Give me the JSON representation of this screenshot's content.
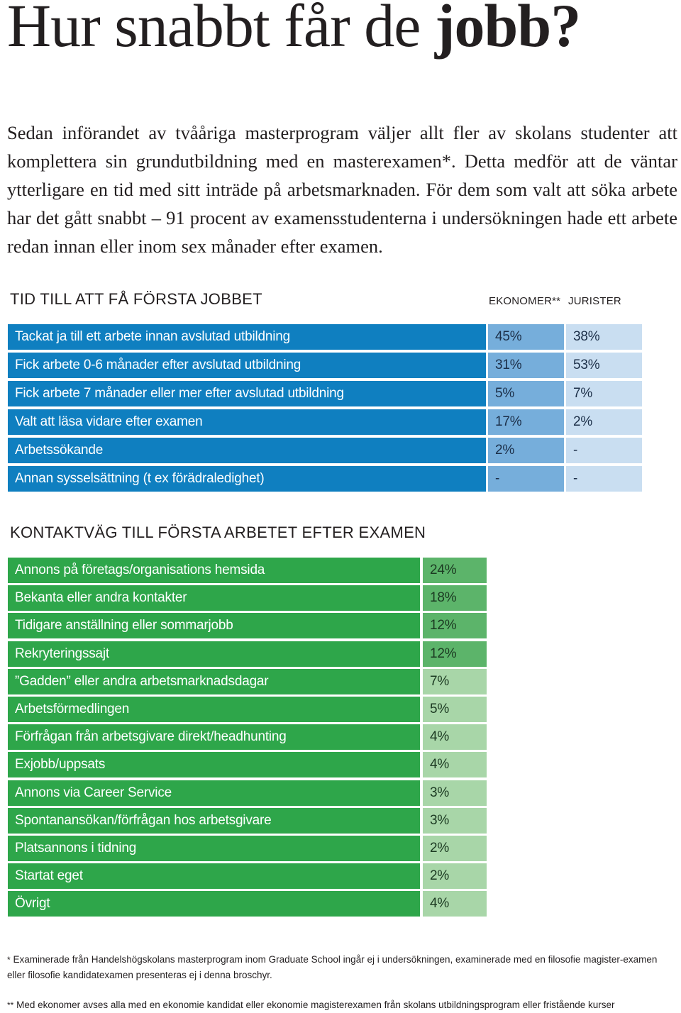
{
  "title": {
    "regular": "Hur snabbt får de ",
    "bold": "jobb?"
  },
  "intro": "Sedan införandet av tvååriga masterprogram väljer allt fler av skolans studenter att komplettera sin grundutbildning med en masterexamen*. Detta medför att de väntar ytterligare en tid med sitt inträde på arbetsmarknaden. För dem som valt att söka arbete har det gått snabbt – 91 procent av examensstudenterna i undersökningen hade ett arbete redan innan eller inom sex månader efter examen.",
  "table1": {
    "heading": "TID TILL ATT FÅ FÖRSTA JOBBET",
    "col1": "EKONOMER**",
    "col2": "JURISTER",
    "colors": {
      "label": "#0f7fc0",
      "ekonomer": "#76aedb",
      "jurister": "#c9def1"
    },
    "rows": [
      {
        "label": "Tackat ja till ett arbete innan avslutad utbildning",
        "ekonomer": "45%",
        "jurister": "38%"
      },
      {
        "label": "Fick arbete 0-6 månader efter avslutad utbildning",
        "ekonomer": "31%",
        "jurister": "53%"
      },
      {
        "label": "Fick arbete 7 månader eller mer efter avslutad utbildning",
        "ekonomer": "5%",
        "jurister": "7%"
      },
      {
        "label": "Valt att läsa vidare efter examen",
        "ekonomer": "17%",
        "jurister": "2%"
      },
      {
        "label": "Arbetssökande",
        "ekonomer": "2%",
        "jurister": "-"
      },
      {
        "label": "Annan sysselsättning (t ex förädraledighet)",
        "ekonomer": "-",
        "jurister": "-"
      }
    ]
  },
  "table2": {
    "heading": "KONTAKTVÄG TILL FÖRSTA ARBETET EFTER EXAMEN",
    "colors": {
      "label": "#2ea64a",
      "value_dark": "#5cb46a",
      "value_light": "#a8d6a8"
    },
    "rows": [
      {
        "label": "Annons på företags/organisations hemsida",
        "value": "24%"
      },
      {
        "label": "Bekanta eller andra kontakter",
        "value": "18%"
      },
      {
        "label": "Tidigare anställning eller sommarjobb",
        "value": "12%"
      },
      {
        "label": "Rekryteringssajt",
        "value": "12%"
      },
      {
        "label": "”Gadden” eller andra arbetsmarknadsdagar",
        "value": "7%"
      },
      {
        "label": "Arbetsförmedlingen",
        "value": "5%"
      },
      {
        "label": "Förfrågan från arbetsgivare direkt/headhunting",
        "value": "4%"
      },
      {
        "label": "Exjobb/uppsats",
        "value": "4%"
      },
      {
        "label": "Annons via Career Service",
        "value": "3%"
      },
      {
        "label": "Spontanansökan/förfrågan hos arbetsgivare",
        "value": "3%"
      },
      {
        "label": "Platsannons i tidning",
        "value": "2%"
      },
      {
        "label": "Startat eget",
        "value": "2%"
      },
      {
        "label": "Övrigt",
        "value": "4%"
      }
    ]
  },
  "footnotes": {
    "note1_mark": "*",
    "note1": "Examinerade från Handelshögskolans masterprogram inom Graduate School ingår ej i undersökningen, examinerade med en filosofie magister-examen eller filosofie kandidatexamen presenteras ej i denna broschyr.",
    "note2_mark": "**",
    "note2": "Med ekonomer avses alla med en ekonomie kandidat eller ekonomie magisterexamen från skolans utbildningsprogram eller fristående kurser"
  }
}
